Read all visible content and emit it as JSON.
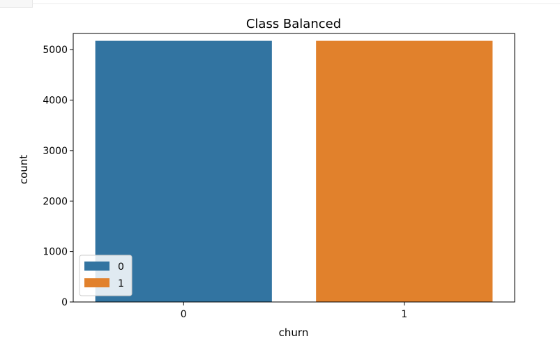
{
  "chart_data": {
    "type": "bar",
    "title": "Class Balanced",
    "xlabel": "churn",
    "ylabel": "count",
    "categories": [
      "0",
      "1"
    ],
    "values": [
      5174,
      5174
    ],
    "colors": [
      "#3274a1",
      "#e1812c"
    ],
    "ylim": [
      0,
      5320
    ],
    "yticks": [
      0,
      1000,
      2000,
      3000,
      4000,
      5000
    ],
    "grid": false,
    "legend": {
      "placement": "lower-left",
      "entries": [
        {
          "label": "0",
          "color": "#3274a1"
        },
        {
          "label": "1",
          "color": "#e1812c"
        }
      ]
    }
  }
}
